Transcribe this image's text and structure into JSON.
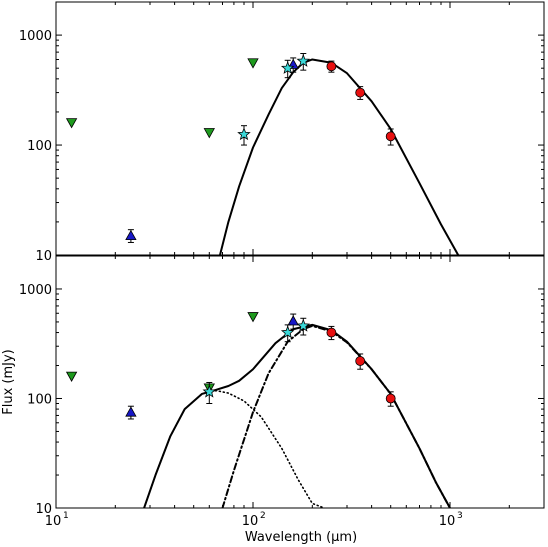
{
  "chart_data": [
    {
      "type": "scatter",
      "panel": "top",
      "xscale": "log",
      "yscale": "log",
      "xlim": [
        10,
        3000
      ],
      "ylim": [
        10,
        2000
      ],
      "yticks": [
        10,
        100,
        1000
      ],
      "ytick_labels": [
        "10",
        "100",
        "1000"
      ],
      "grid": false,
      "series": [
        {
          "marker": "triangle-down",
          "color": "#1e9a1e",
          "x": [
            12,
            60,
            100
          ],
          "y": [
            160,
            130,
            560
          ]
        },
        {
          "marker": "triangle-up",
          "color": "#1717c8",
          "x": [
            24,
            160
          ],
          "y": [
            15,
            540
          ],
          "yerr": [
            2,
            80
          ]
        },
        {
          "marker": "star",
          "color": "#3ad8d8",
          "x": [
            90,
            150,
            180
          ],
          "y": [
            125,
            500,
            580
          ],
          "yerr": [
            25,
            90,
            100
          ]
        },
        {
          "marker": "circle",
          "color": "#e81010",
          "x": [
            250,
            350,
            500
          ],
          "y": [
            520,
            300,
            120
          ],
          "yerr": [
            60,
            40,
            20
          ]
        }
      ],
      "curves": [
        {
          "style": "solid",
          "x": [
            68,
            75,
            85,
            100,
            120,
            140,
            160,
            180,
            200,
            250,
            300,
            400,
            500,
            700,
            900,
            1100
          ],
          "y": [
            10,
            20,
            42,
            95,
            190,
            330,
            460,
            560,
            600,
            560,
            450,
            250,
            140,
            45,
            19,
            10
          ]
        }
      ]
    },
    {
      "type": "scatter",
      "panel": "bottom",
      "xscale": "log",
      "yscale": "log",
      "xlim": [
        10,
        3000
      ],
      "ylim": [
        10,
        2000
      ],
      "xticks": [
        10,
        100,
        1000
      ],
      "xtick_labels": [
        "10",
        "10",
        "10"
      ],
      "xtick_exponents": [
        "1",
        "2",
        "3"
      ],
      "yticks": [
        10,
        100,
        1000
      ],
      "ytick_labels": [
        "10",
        "100",
        "1000"
      ],
      "xlabel": "Wavelength (",
      "xlabel_symbol": "μ",
      "xlabel_tail": "m)",
      "ylabel": "Flux (mJy)",
      "grid": false,
      "series": [
        {
          "marker": "triangle-down",
          "color": "#1e9a1e",
          "x": [
            12,
            60,
            100
          ],
          "y": [
            160,
            125,
            560
          ]
        },
        {
          "marker": "triangle-up",
          "color": "#1717c8",
          "x": [
            24,
            160
          ],
          "y": [
            75,
            510
          ],
          "yerr": [
            10,
            80
          ]
        },
        {
          "marker": "star",
          "color": "#3ad8d8",
          "x": [
            60,
            150,
            180
          ],
          "y": [
            115,
            400,
            460
          ],
          "yerr": [
            25,
            70,
            80
          ]
        },
        {
          "marker": "circle",
          "color": "#e81010",
          "x": [
            250,
            350,
            500
          ],
          "y": [
            400,
            220,
            100
          ],
          "yerr": [
            55,
            35,
            15
          ]
        }
      ],
      "curves": [
        {
          "style": "solid",
          "x": [
            28,
            32,
            38,
            45,
            55,
            65,
            75,
            85,
            100,
            130,
            160,
            200,
            250,
            300,
            400,
            500,
            700,
            850,
            1000
          ],
          "y": [
            10,
            20,
            45,
            80,
            110,
            120,
            130,
            145,
            185,
            320,
            430,
            470,
            420,
            330,
            185,
            110,
            35,
            17,
            10
          ]
        },
        {
          "style": "dotted",
          "x": [
            28,
            32,
            38,
            45,
            55,
            65,
            75,
            90,
            110,
            140,
            170,
            200,
            230
          ],
          "y": [
            10,
            20,
            45,
            80,
            110,
            118,
            112,
            95,
            68,
            35,
            18,
            11,
            10
          ]
        },
        {
          "style": "dashdot",
          "x": [
            70,
            80,
            100,
            120,
            150,
            180,
            200,
            250,
            300,
            400,
            500,
            700,
            850,
            1000
          ],
          "y": [
            10,
            22,
            75,
            170,
            330,
            430,
            460,
            410,
            325,
            185,
            110,
            35,
            17,
            10
          ]
        }
      ]
    }
  ]
}
